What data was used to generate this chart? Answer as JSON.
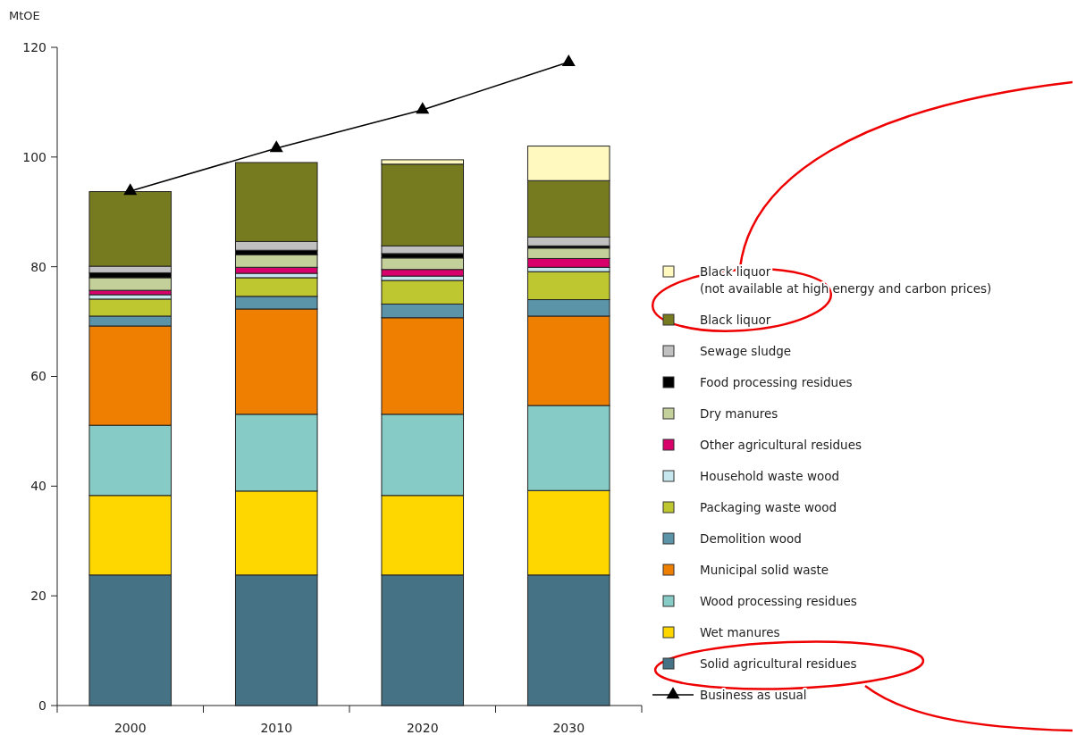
{
  "chart_data": {
    "type": "bar",
    "stacked": true,
    "ylabel": "MtOE",
    "categories": [
      "2000",
      "2010",
      "2020",
      "2030"
    ],
    "ylim": [
      0,
      120
    ],
    "yticks": [
      0,
      20,
      40,
      60,
      80,
      100,
      120
    ],
    "grid": false,
    "legend": "right",
    "series": [
      {
        "name": "Solid agricultural residues",
        "color": "#457385",
        "values": [
          23.8,
          23.8,
          23.8,
          23.8
        ]
      },
      {
        "name": "Wet manures",
        "color": "#ffd700",
        "values": [
          14.5,
          15.3,
          14.5,
          15.4
        ]
      },
      {
        "name": "Wood processing residues",
        "color": "#86cbc5",
        "values": [
          12.8,
          14.0,
          14.8,
          15.5
        ]
      },
      {
        "name": "Municipal solid waste",
        "color": "#ef7f00",
        "values": [
          18.1,
          19.2,
          17.6,
          16.3
        ]
      },
      {
        "name": "Demolition wood",
        "color": "#5b93a8",
        "values": [
          1.8,
          2.3,
          2.5,
          3.0
        ]
      },
      {
        "name": "Packaging waste wood",
        "color": "#bec72f",
        "values": [
          3.1,
          3.4,
          4.3,
          5.1
        ]
      },
      {
        "name": "Household waste wood",
        "color": "#c7e7ee",
        "values": [
          0.8,
          0.8,
          0.8,
          0.8
        ]
      },
      {
        "name": "Other agricultural residues",
        "color": "#d8006b",
        "values": [
          0.8,
          1.1,
          1.2,
          1.6
        ]
      },
      {
        "name": "Dry manures",
        "color": "#c4d09a",
        "values": [
          2.3,
          2.3,
          2.1,
          1.9
        ]
      },
      {
        "name": "Food processing residues",
        "color": "#000000",
        "values": [
          0.9,
          0.8,
          0.8,
          0.4
        ]
      },
      {
        "name": "Sewage sludge",
        "color": "#c0c0c0",
        "values": [
          1.2,
          1.6,
          1.4,
          1.6
        ]
      },
      {
        "name": "Black liquor",
        "color": "#777b20",
        "values": [
          13.6,
          14.4,
          14.9,
          10.3
        ]
      },
      {
        "name": "Black liquor\n(not available at high energy and carbon prices)",
        "color": "#fff8bf",
        "values": [
          0,
          0,
          0.8,
          6.3
        ]
      },
      {
        "name": "Business as usual",
        "type": "line",
        "color": "#000000",
        "marker": "triangle",
        "values": [
          93.8,
          101.6,
          108.6,
          117.3
        ]
      }
    ]
  }
}
